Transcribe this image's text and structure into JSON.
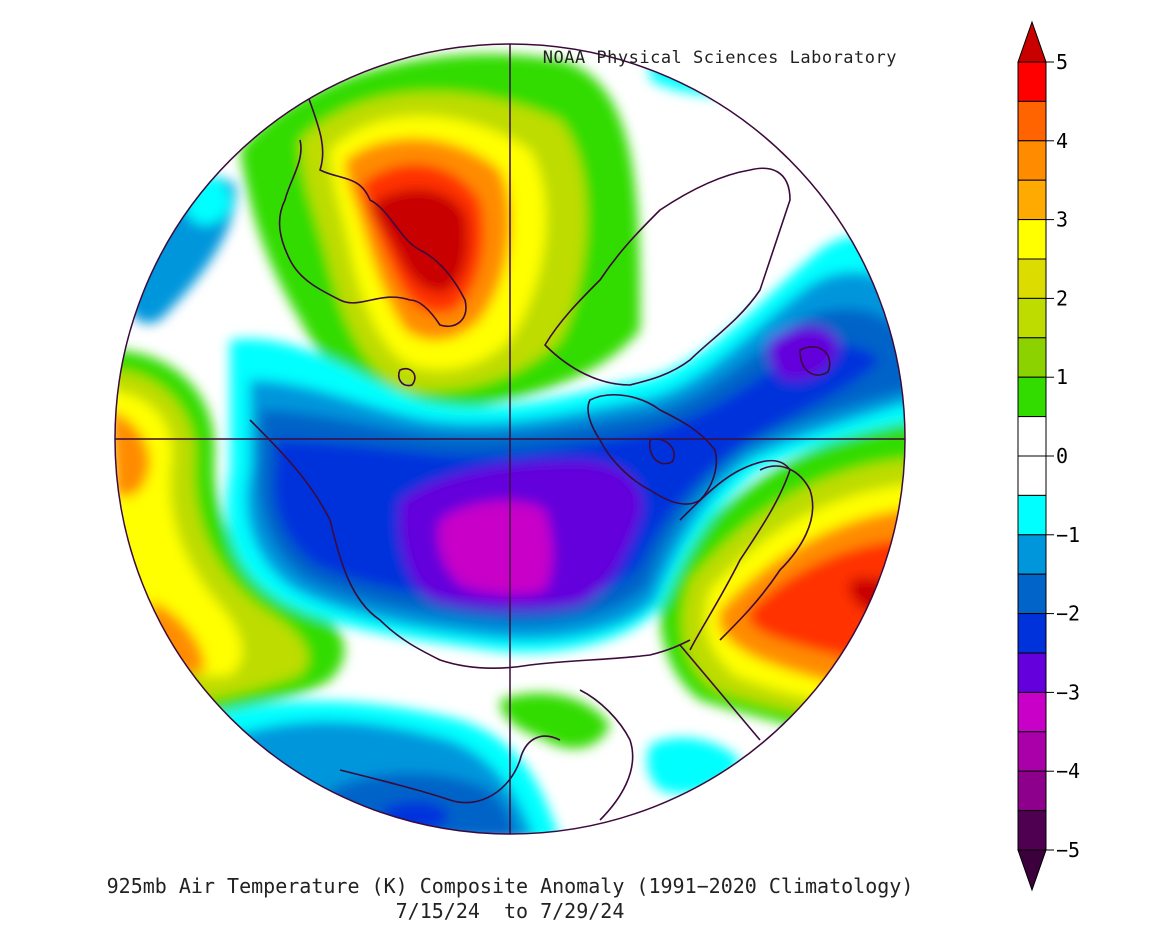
{
  "credit": "NOAA Physical Sciences Laboratory",
  "title_line1": "925mb Air Temperature (K) Composite Anomaly (1991−2020 Climatology)",
  "title_line2": "7/15/24  to 7/29/24",
  "colorbar": {
    "tick_labels": [
      "5",
      "4",
      "3",
      "2",
      "1",
      "0",
      "−1",
      "−2",
      "−3",
      "−4",
      "−5"
    ],
    "colors_top_to_bottom": [
      "#ff0000",
      "#ff6400",
      "#ff8c00",
      "#ffaa00",
      "#ffff00",
      "#dcdc00",
      "#bedc00",
      "#8cd200",
      "#32dc00",
      "#ffffff",
      "#ffffff",
      "#00ffff",
      "#0096dc",
      "#0064c8",
      "#0032dc",
      "#6400dc",
      "#c800c8",
      "#aa00aa",
      "#8c008c",
      "#500050"
    ],
    "over_color": "#c80000",
    "under_color": "#3c003c",
    "range": [
      -5,
      5
    ],
    "step": 0.5
  },
  "map": {
    "projection": "north-polar-stereographic",
    "variable": "925mb air temperature anomaly (K)",
    "landmasses": [
      "Alaska",
      "Canada",
      "Greenland",
      "Europe",
      "Russia/Siberia"
    ]
  }
}
